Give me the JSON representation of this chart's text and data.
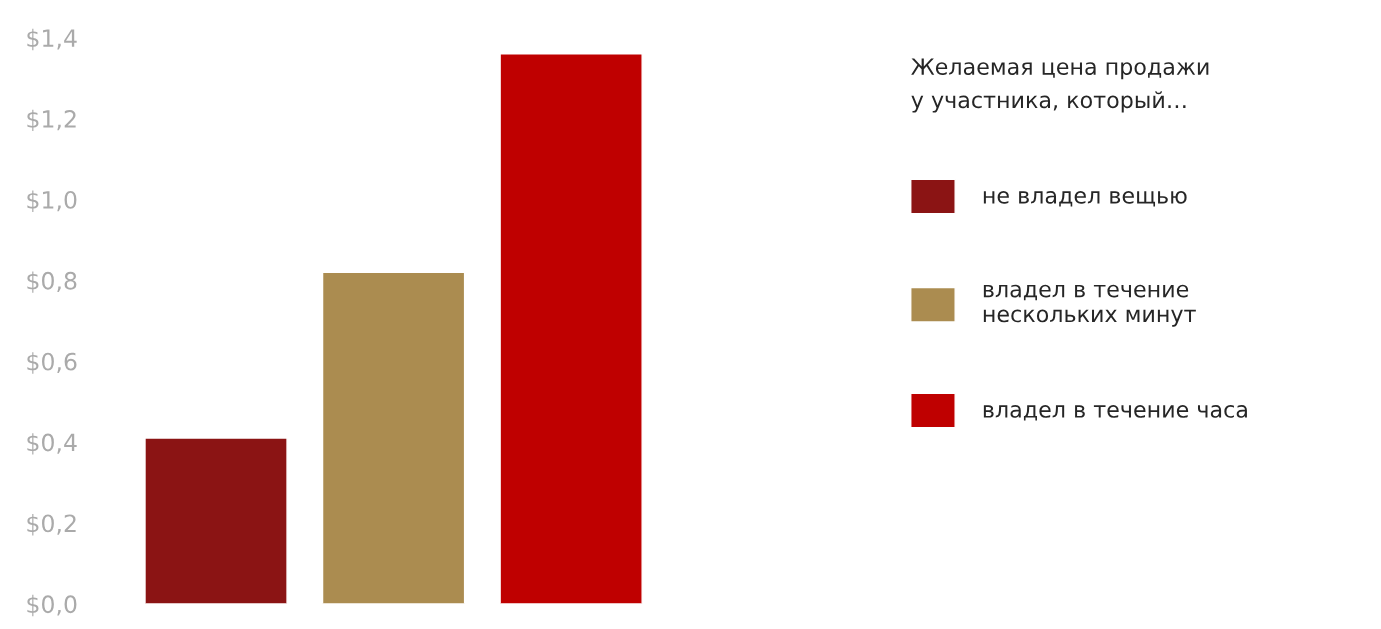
{
  "chart_data": {
    "type": "bar",
    "categories": [
      null,
      null,
      null
    ],
    "series": [
      {
        "name": "не владел вещью",
        "color": "#8b1414",
        "values": [
          0.41,
          null,
          null
        ]
      },
      {
        "name": "владел в течение\nнескольких минут",
        "color": "#ab8c50",
        "values": [
          null,
          0.82,
          null
        ]
      },
      {
        "name": "владел в течение часа",
        "color": "#bf0000",
        "values": [
          null,
          null,
          1.36
        ]
      }
    ],
    "legend_title": "Желаемая цена продажи\nу участника, который…",
    "ylim": [
      0,
      1.4
    ],
    "yticks": [
      {
        "value": 0,
        "label": "$0,0"
      },
      {
        "value": 0.2,
        "label": "$0,2"
      },
      {
        "value": 0.4,
        "label": "$0,4"
      },
      {
        "value": 0.6,
        "label": "$0,6"
      },
      {
        "value": 0.8,
        "label": "$0,8"
      },
      {
        "value": 1.0,
        "label": "$1,0"
      },
      {
        "value": 1.2,
        "label": "$1,2"
      },
      {
        "value": 1.4,
        "label": "$1,4"
      }
    ],
    "tick_labels": "y",
    "stacked": true,
    "grid": false,
    "legend": "right"
  }
}
